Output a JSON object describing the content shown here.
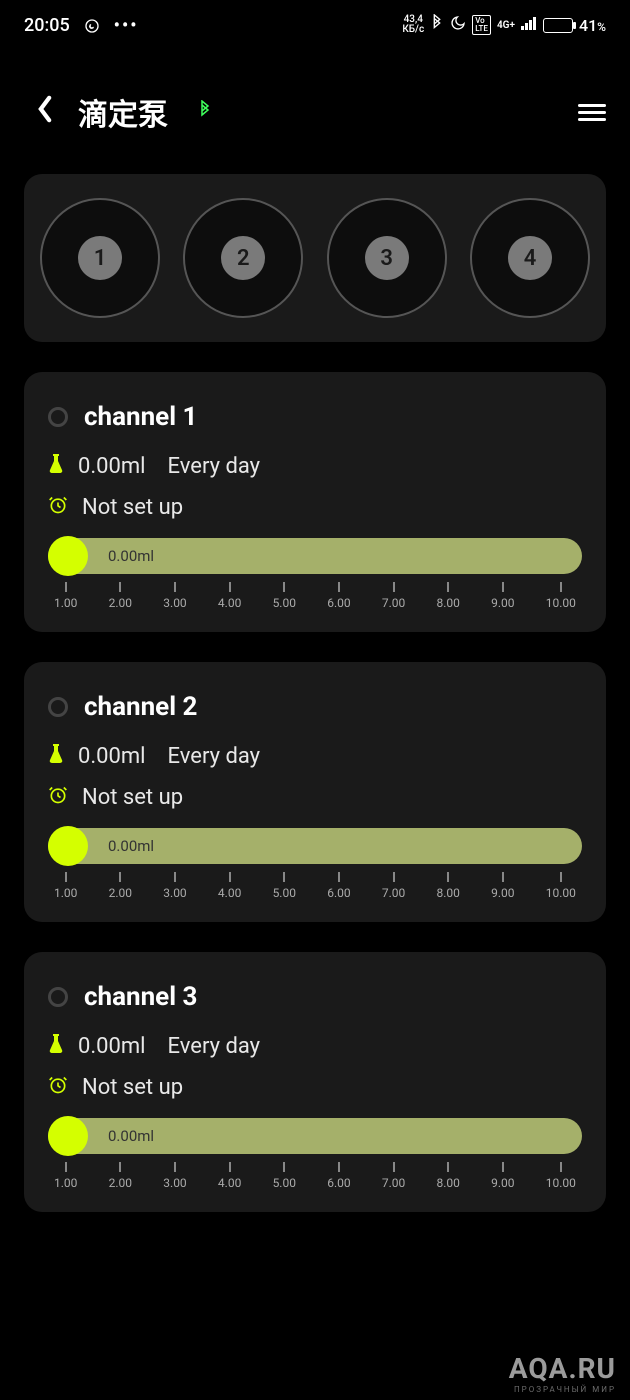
{
  "status_bar": {
    "time": "20:05",
    "network_speed_top": "43,4",
    "network_speed_unit": "КБ/с",
    "volte": "Vo LTE",
    "signal": "4G+",
    "battery_pct": "41",
    "battery_fill_pct": 41
  },
  "header": {
    "title": "滴定泵"
  },
  "circles": [
    "1",
    "2",
    "3",
    "4"
  ],
  "channels": [
    {
      "name": "channel 1",
      "volume": "0.00ml",
      "schedule": "Every day",
      "alarm": "Not set up",
      "slider_value": "0.00ml",
      "ticks": [
        "1.00",
        "2.00",
        "3.00",
        "4.00",
        "5.00",
        "6.00",
        "7.00",
        "8.00",
        "9.00",
        "10.00"
      ]
    },
    {
      "name": "channel 2",
      "volume": "0.00ml",
      "schedule": "Every day",
      "alarm": "Not set up",
      "slider_value": "0.00ml",
      "ticks": [
        "1.00",
        "2.00",
        "3.00",
        "4.00",
        "5.00",
        "6.00",
        "7.00",
        "8.00",
        "9.00",
        "10.00"
      ]
    },
    {
      "name": "channel 3",
      "volume": "0.00ml",
      "schedule": "Every day",
      "alarm": "Not set up",
      "slider_value": "0.00ml",
      "ticks": [
        "1.00",
        "2.00",
        "3.00",
        "4.00",
        "5.00",
        "6.00",
        "7.00",
        "8.00",
        "9.00",
        "10.00"
      ]
    }
  ],
  "watermark": {
    "main": "AQA.RU",
    "sub": "ПРОЗРАЧНЫЙ МИР"
  },
  "colors": {
    "bg": "#000000",
    "card": "#1a1a1a",
    "accent": "#d4ff00",
    "slider_track": "#a5b06a",
    "circle_border": "#555555",
    "circle_inner": "#7a7a7a",
    "bt_green": "#3fff5c"
  }
}
